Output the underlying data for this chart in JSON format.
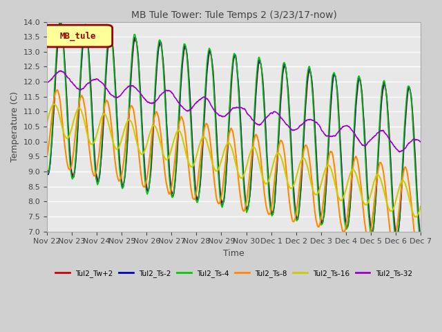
{
  "title": "MB Tule Tower: Tule Temps 2 (3/23/17-now)",
  "xlabel": "Time",
  "ylabel": "Temperature (C)",
  "ylim": [
    7.0,
    14.0
  ],
  "yticks": [
    7.0,
    7.5,
    8.0,
    8.5,
    9.0,
    9.5,
    10.0,
    10.5,
    11.0,
    11.5,
    12.0,
    12.5,
    13.0,
    13.5,
    14.0
  ],
  "xtick_labels": [
    "Nov 22",
    "Nov 23",
    "Nov 24",
    "Nov 25",
    "Nov 26",
    "Nov 27",
    "Nov 28",
    "Nov 29",
    "Nov 30",
    "Dec 1",
    "Dec 2",
    "Dec 3",
    "Dec 4",
    "Dec 5",
    "Dec 6",
    "Dec 7"
  ],
  "legend_label": "MB_tule",
  "legend_box_color": "#ffff99",
  "legend_box_edge": "#990000",
  "series": [
    {
      "name": "Tul2_Tw+2",
      "color": "#cc0000",
      "lw": 1.2
    },
    {
      "name": "Tul2_Ts-2",
      "color": "#0000cc",
      "lw": 1.2
    },
    {
      "name": "Tul2_Ts-4",
      "color": "#00cc00",
      "lw": 1.2
    },
    {
      "name": "Tul2_Ts-8",
      "color": "#ff8800",
      "lw": 1.5
    },
    {
      "name": "Tul2_Ts-16",
      "color": "#cccc00",
      "lw": 1.5
    },
    {
      "name": "Tul2_Ts-32",
      "color": "#9900cc",
      "lw": 1.2
    }
  ],
  "background_color": "#e8e8e8",
  "grid_color": "#ffffff",
  "n_days": 15
}
